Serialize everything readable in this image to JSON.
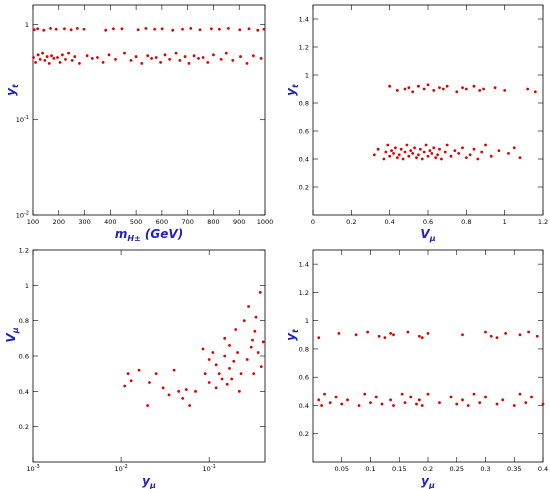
{
  "chart_data": [
    {
      "type": "scatter",
      "color": "#e00000",
      "ylog": true,
      "ylabel": "y",
      "ylabel_sub": "t",
      "xlabel": "m",
      "xlabel_sub": "H±",
      "xlabel_suffix": " (GeV)",
      "xlim": [
        100,
        1000
      ],
      "xticks": [
        100,
        200,
        300,
        400,
        500,
        600,
        700,
        800,
        900,
        1000
      ],
      "ylim": [
        0.01,
        1.6
      ],
      "yticks": [
        {
          "value": 0.01,
          "label": "10",
          "sup": "-2"
        },
        {
          "value": 0.1,
          "label": "10",
          "sup": "-1"
        },
        1
      ],
      "x": [
        105,
        118,
        142,
        168,
        190,
        222,
        248,
        272,
        298,
        382,
        412,
        445,
        508,
        538,
        572,
        601,
        642,
        680,
        712,
        748,
        792,
        823,
        858,
        902,
        938,
        972,
        996,
        102,
        110,
        120,
        128,
        137,
        146,
        155,
        163,
        172,
        181,
        195,
        205,
        214,
        226,
        238,
        252,
        262,
        280,
        310,
        330,
        350,
        372,
        395,
        420,
        455,
        480,
        500,
        522,
        545,
        560,
        578,
        595,
        612,
        630,
        655,
        670,
        690,
        705,
        725,
        742,
        760,
        778,
        800,
        830,
        850,
        875,
        905,
        930,
        955,
        985
      ],
      "values": [
        0.88,
        0.9,
        0.87,
        0.91,
        0.89,
        0.9,
        0.88,
        0.91,
        0.89,
        0.87,
        0.9,
        0.9,
        0.88,
        0.91,
        0.89,
        0.9,
        0.87,
        0.89,
        0.91,
        0.88,
        0.9,
        0.89,
        0.91,
        0.88,
        0.9,
        0.87,
        0.89,
        0.45,
        0.4,
        0.48,
        0.43,
        0.5,
        0.42,
        0.46,
        0.39,
        0.47,
        0.44,
        0.45,
        0.4,
        0.48,
        0.43,
        0.5,
        0.42,
        0.46,
        0.39,
        0.47,
        0.44,
        0.45,
        0.4,
        0.48,
        0.43,
        0.5,
        0.42,
        0.46,
        0.39,
        0.47,
        0.44,
        0.45,
        0.4,
        0.48,
        0.43,
        0.5,
        0.42,
        0.46,
        0.39,
        0.47,
        0.44,
        0.45,
        0.4,
        0.48,
        0.43,
        0.5,
        0.42,
        0.46,
        0.39,
        0.47,
        0.44
      ]
    },
    {
      "type": "scatter",
      "color": "#e00000",
      "ylabel": "y",
      "ylabel_sub": "t",
      "xlabel": "V",
      "xlabel_sub": "μ",
      "xlim": [
        0,
        1.2
      ],
      "xticks": [
        0,
        0.2,
        0.4,
        0.6,
        0.8,
        1,
        1.2
      ],
      "ylim": [
        0,
        1.5
      ],
      "yticks": [
        0.2,
        0.4,
        0.6,
        0.8,
        1,
        1.2,
        1.4
      ],
      "x": [
        0.32,
        0.34,
        0.37,
        0.38,
        0.39,
        0.4,
        0.41,
        0.42,
        0.43,
        0.44,
        0.45,
        0.46,
        0.47,
        0.48,
        0.49,
        0.5,
        0.51,
        0.52,
        0.53,
        0.54,
        0.55,
        0.56,
        0.57,
        0.58,
        0.59,
        0.6,
        0.61,
        0.62,
        0.63,
        0.64,
        0.65,
        0.66,
        0.67,
        0.69,
        0.7,
        0.72,
        0.74,
        0.76,
        0.78,
        0.8,
        0.82,
        0.84,
        0.86,
        0.88,
        0.9,
        0.93,
        0.97,
        1.02,
        1.05,
        1.08,
        0.4,
        0.44,
        0.48,
        0.5,
        0.52,
        0.55,
        0.58,
        0.6,
        0.63,
        0.66,
        0.68,
        0.7,
        0.75,
        0.78,
        0.8,
        0.84,
        0.87,
        0.89,
        0.95,
        1.0,
        1.12,
        1.16
      ],
      "values": [
        0.43,
        0.47,
        0.4,
        0.45,
        0.5,
        0.42,
        0.46,
        0.44,
        0.48,
        0.41,
        0.43,
        0.47,
        0.4,
        0.45,
        0.5,
        0.42,
        0.46,
        0.44,
        0.48,
        0.41,
        0.43,
        0.47,
        0.4,
        0.45,
        0.5,
        0.42,
        0.46,
        0.44,
        0.48,
        0.41,
        0.43,
        0.47,
        0.4,
        0.45,
        0.5,
        0.42,
        0.46,
        0.44,
        0.48,
        0.41,
        0.43,
        0.47,
        0.4,
        0.45,
        0.5,
        0.42,
        0.46,
        0.44,
        0.48,
        0.41,
        0.92,
        0.89,
        0.9,
        0.91,
        0.88,
        0.92,
        0.9,
        0.93,
        0.89,
        0.91,
        0.9,
        0.92,
        0.88,
        0.91,
        0.9,
        0.92,
        0.89,
        0.9,
        0.91,
        0.89,
        0.9,
        0.88
      ]
    },
    {
      "type": "scatter",
      "color": "#e00000",
      "xlog": true,
      "ylabel": "V",
      "ylabel_sub": "μ",
      "xlabel": "y",
      "xlabel_sub": "μ",
      "xlim": [
        0.001,
        0.43
      ],
      "xticks": [
        {
          "value": 0.001,
          "label": "10",
          "sup": "-3"
        },
        {
          "value": 0.01,
          "label": "10",
          "sup": "-2"
        },
        {
          "value": 0.1,
          "label": "10",
          "sup": "-1"
        }
      ],
      "ylim": [
        0,
        1.2
      ],
      "yticks": [
        0.2,
        0.4,
        0.6,
        0.8,
        1,
        1.2
      ],
      "x": [
        0.011,
        0.012,
        0.013,
        0.016,
        0.02,
        0.021,
        0.025,
        0.03,
        0.035,
        0.04,
        0.045,
        0.05,
        0.055,
        0.06,
        0.07,
        0.085,
        0.09,
        0.1,
        0.1,
        0.11,
        0.12,
        0.12,
        0.13,
        0.14,
        0.15,
        0.15,
        0.16,
        0.17,
        0.17,
        0.18,
        0.19,
        0.2,
        0.21,
        0.22,
        0.23,
        0.25,
        0.27,
        0.28,
        0.3,
        0.31,
        0.32,
        0.33,
        0.34,
        0.36,
        0.38,
        0.39,
        0.41
      ],
      "values": [
        0.43,
        0.5,
        0.46,
        0.52,
        0.32,
        0.45,
        0.5,
        0.42,
        0.38,
        0.52,
        0.4,
        0.36,
        0.41,
        0.32,
        0.4,
        0.64,
        0.5,
        0.45,
        0.58,
        0.62,
        0.55,
        0.42,
        0.5,
        0.47,
        0.7,
        0.6,
        0.44,
        0.66,
        0.53,
        0.47,
        0.57,
        0.75,
        0.62,
        0.4,
        0.5,
        0.8,
        0.58,
        0.88,
        0.65,
        0.69,
        0.5,
        0.74,
        0.82,
        0.62,
        0.96,
        0.54,
        0.68
      ]
    },
    {
      "type": "scatter",
      "color": "#e00000",
      "ylabel": "y",
      "ylabel_sub": "t",
      "xlabel": "y",
      "xlabel_sub": "μ",
      "xlim": [
        0,
        0.4
      ],
      "xticks": [
        0.05,
        0.1,
        0.15,
        0.2,
        0.25,
        0.3,
        0.35,
        0.4
      ],
      "ylim": [
        0,
        1.5
      ],
      "yticks": [
        0.2,
        0.4,
        0.6,
        0.8,
        1,
        1.2,
        1.4
      ],
      "x": [
        0.01,
        0.015,
        0.02,
        0.03,
        0.04,
        0.05,
        0.06,
        0.08,
        0.09,
        0.1,
        0.11,
        0.12,
        0.135,
        0.14,
        0.155,
        0.16,
        0.17,
        0.18,
        0.185,
        0.19,
        0.2,
        0.22,
        0.24,
        0.25,
        0.26,
        0.27,
        0.28,
        0.29,
        0.3,
        0.32,
        0.33,
        0.35,
        0.36,
        0.37,
        0.38,
        0.4,
        0.01,
        0.045,
        0.075,
        0.095,
        0.115,
        0.125,
        0.135,
        0.14,
        0.165,
        0.185,
        0.19,
        0.2,
        0.26,
        0.3,
        0.31,
        0.32,
        0.335,
        0.36,
        0.375,
        0.39
      ],
      "values": [
        0.44,
        0.4,
        0.48,
        0.42,
        0.46,
        0.41,
        0.44,
        0.4,
        0.48,
        0.42,
        0.46,
        0.41,
        0.44,
        0.4,
        0.48,
        0.42,
        0.46,
        0.41,
        0.44,
        0.4,
        0.48,
        0.42,
        0.46,
        0.41,
        0.44,
        0.4,
        0.48,
        0.42,
        0.46,
        0.41,
        0.44,
        0.4,
        0.48,
        0.42,
        0.46,
        0.41,
        0.88,
        0.91,
        0.9,
        0.92,
        0.89,
        0.88,
        0.91,
        0.9,
        0.92,
        0.89,
        0.88,
        0.91,
        0.9,
        0.92,
        0.89,
        0.88,
        0.91,
        0.9,
        0.92,
        0.89
      ]
    }
  ]
}
